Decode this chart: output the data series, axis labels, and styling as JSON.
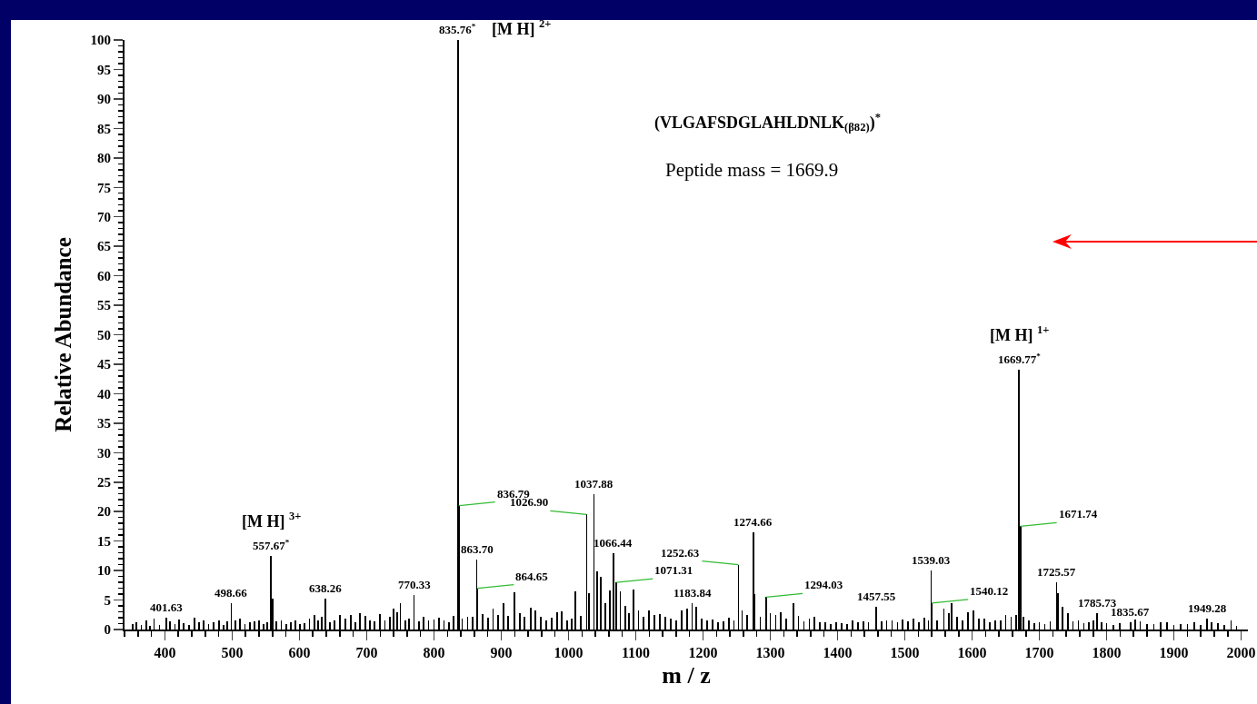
{
  "chart_data": {
    "type": "bar",
    "xlabel": "m / z",
    "ylabel": "Relative Abundance",
    "color": "#000000",
    "x": [
      352,
      358,
      365,
      372,
      378,
      384,
      392,
      401.63,
      408,
      415,
      421,
      428,
      436,
      444,
      451,
      458,
      465,
      472,
      480,
      487,
      493,
      498.66,
      505,
      512,
      519,
      526,
      533,
      540,
      547,
      552,
      557.67,
      560,
      566,
      573,
      580,
      587,
      594,
      601,
      608,
      615,
      622,
      628,
      633,
      638.26,
      645,
      652,
      660,
      668,
      676,
      683,
      690,
      698,
      705,
      712,
      720,
      727,
      734,
      740,
      745,
      750,
      757,
      763,
      770.33,
      778,
      785,
      792,
      800,
      807,
      815,
      822,
      829,
      835.76,
      836.79,
      842,
      850,
      857,
      863.7,
      864.65,
      872,
      880,
      888,
      895,
      903,
      910,
      920,
      928,
      935,
      944,
      951,
      959,
      967,
      975,
      983,
      990,
      998,
      1005,
      1010,
      1018,
      1026.9,
      1030,
      1037.88,
      1043,
      1048,
      1055,
      1062,
      1066.44,
      1071.31,
      1077,
      1084,
      1090,
      1097,
      1104,
      1112,
      1120,
      1128,
      1136,
      1144,
      1152,
      1160,
      1168,
      1176,
      1183.84,
      1190,
      1198,
      1206,
      1214,
      1222,
      1230,
      1238,
      1246,
      1252.63,
      1258,
      1266,
      1274.66,
      1277,
      1285,
      1294.03,
      1300,
      1308,
      1316,
      1324,
      1334,
      1342,
      1350,
      1358,
      1366,
      1374,
      1382,
      1390,
      1398,
      1406,
      1414,
      1422,
      1430,
      1438,
      1446,
      1457.55,
      1465,
      1473,
      1481,
      1489,
      1497,
      1505,
      1513,
      1521,
      1529,
      1535,
      1539.03,
      1540.12,
      1548,
      1558,
      1565,
      1570,
      1578,
      1586,
      1594,
      1602,
      1610,
      1618,
      1626,
      1634,
      1642,
      1650,
      1658,
      1665,
      1669.77,
      1671.74,
      1676,
      1684,
      1692,
      1700,
      1708,
      1716,
      1725.57,
      1728,
      1734,
      1742,
      1750,
      1758,
      1766,
      1774,
      1780,
      1785.73,
      1792,
      1800,
      1810,
      1820,
      1835.67,
      1842,
      1850,
      1860,
      1870,
      1880,
      1890,
      1900,
      1910,
      1920,
      1930,
      1940,
      1949.28,
      1956,
      1965,
      1975,
      1985,
      1993
    ],
    "values": [
      1,
      1.2,
      0.8,
      1.5,
      0.6,
      1.8,
      0.7,
      2,
      1.4,
      0.9,
      1.7,
      1.1,
      0.8,
      2,
      1.3,
      1.5,
      0.9,
      1.2,
      1.6,
      0.8,
      1.4,
      4.5,
      1.5,
      1.8,
      0.9,
      1.2,
      1.4,
      1.6,
      1,
      1.3,
      12.5,
      5.3,
      1.4,
      1.6,
      1,
      1.2,
      1.5,
      0.9,
      1.1,
      1.8,
      2.5,
      1.6,
      2.2,
      5.3,
      1.3,
      1.5,
      2.5,
      1.8,
      2.4,
      1.2,
      2.8,
      2.3,
      1.6,
      1.4,
      2.6,
      1.5,
      2.2,
      3.5,
      2.9,
      4.5,
      1.6,
      1.9,
      5.8,
      1.4,
      2.1,
      1.5,
      1.7,
      2,
      1.6,
      1.3,
      2.3,
      100,
      21,
      1.8,
      2.1,
      2.2,
      11.8,
      7,
      2.6,
      2,
      3.5,
      2.4,
      4.5,
      2.3,
      6.3,
      2.8,
      2.2,
      3.7,
      3.2,
      2.1,
      1.5,
      2,
      2.9,
      3.1,
      1.6,
      1.9,
      6.5,
      2.3,
      19.5,
      6.1,
      23,
      9.8,
      9,
      4.4,
      6.6,
      13,
      8,
      6.4,
      4,
      2.8,
      6.8,
      3.2,
      2.2,
      3.3,
      2.5,
      2.6,
      2.1,
      1.9,
      1.6,
      3.3,
      3.5,
      4.4,
      3.8,
      1.8,
      1.5,
      1.7,
      1.2,
      1.4,
      2,
      1.6,
      11,
      3.3,
      2.5,
      16.5,
      6,
      2.2,
      5.5,
      2.7,
      2.4,
      2.9,
      1.8,
      4.5,
      2.3,
      1.4,
      1.8,
      2.1,
      1.2,
      1.3,
      1,
      1.3,
      1.1,
      1,
      1.5,
      1.2,
      1.4,
      1.3,
      3.8,
      1.4,
      1.5,
      1.6,
      1.3,
      1.7,
      1.4,
      1.8,
      1.3,
      2,
      1.6,
      10,
      4.5,
      1.5,
      3.5,
      2.8,
      4.5,
      2.2,
      1.5,
      3,
      3.3,
      1.9,
      1.8,
      1.2,
      1.6,
      1.5,
      2.5,
      2.2,
      2.4,
      44,
      17.5,
      2.2,
      1.5,
      1.1,
      1.2,
      1,
      1.4,
      8,
      6.2,
      3.8,
      2.7,
      1.4,
      1.5,
      1.1,
      1.3,
      1.6,
      2.8,
      1.2,
      1.1,
      0.8,
      1.1,
      1.3,
      1.7,
      1.4,
      0.9,
      1,
      1.3,
      1.2,
      0.8,
      1,
      0.9,
      1.2,
      0.8,
      1.8,
      1.3,
      1.1,
      0.8,
      1.5,
      0.6
    ],
    "xlim": [
      340,
      2010
    ],
    "ylim": [
      0,
      100
    ],
    "xticks": [
      400,
      500,
      600,
      700,
      800,
      900,
      1000,
      1100,
      1200,
      1300,
      1400,
      1500,
      1600,
      1700,
      1800,
      1900,
      2000
    ],
    "yticks": [
      0,
      5,
      10,
      15,
      20,
      25,
      30,
      35,
      40,
      45,
      50,
      55,
      60,
      65,
      70,
      75,
      80,
      85,
      90,
      95,
      100
    ],
    "grid": false,
    "annotations": [
      "(VLGAFSDGLAHLDNLK$_{(β82)}$)$^{*}$",
      "Peptide mass = 1669.9",
      {
        "text": "835.76$^{*}$",
        "x": 835.76,
        "y": 100
      },
      "[M H] $^{2+}$",
      {
        "text": "836.79",
        "x": 836.79,
        "y": 21
      },
      {
        "text": "863.70",
        "x": 863.7,
        "y": 11.8
      },
      {
        "text": "864.65",
        "x": 864.65,
        "y": 7
      },
      {
        "text": "1026.90",
        "x": 1026.9,
        "y": 19.5
      },
      {
        "text": "1037.88",
        "x": 1037.88,
        "y": 23
      },
      {
        "text": "1066.44",
        "x": 1066.44,
        "y": 13
      },
      {
        "text": "1071.31",
        "x": 1071.31,
        "y": 8
      },
      {
        "text": "1183.84",
        "x": 1183.84,
        "y": 4.4
      },
      {
        "text": "1252.63",
        "x": 1252.63,
        "y": 11
      },
      {
        "text": "1274.66",
        "x": 1274.66,
        "y": 16.5
      },
      {
        "text": "1294.03",
        "x": 1294.03,
        "y": 5.5
      },
      {
        "text": "401.63",
        "x": 401.63,
        "y": 2
      },
      {
        "text": "498.66",
        "x": 498.66,
        "y": 4.5
      },
      {
        "text": "557.67$^{*}$",
        "x": 557.67,
        "y": 12.5
      },
      {
        "text": "[M H] $^{3+}$",
        "x": 557.67,
        "y": 12.5
      },
      {
        "text": "638.26",
        "x": 638.26,
        "y": 5.3
      },
      {
        "text": "770.33",
        "x": 770.33,
        "y": 5.8
      },
      {
        "text": "1457.55",
        "x": 1457.55,
        "y": 3.8
      },
      {
        "text": "1539.03",
        "x": 1539.03,
        "y": 10
      },
      {
        "text": "1540.12",
        "x": 1540.12,
        "y": 4.5
      },
      {
        "text": "1669.77$^{*}$",
        "x": 1669.77,
        "y": 44
      },
      {
        "text": "[M H] $^{1+}$",
        "x": 1669.77,
        "y": 44
      },
      {
        "text": "1671.74",
        "x": 1671.74,
        "y": 17.5
      },
      {
        "text": "1725.57",
        "x": 1725.57,
        "y": 8
      },
      {
        "text": "1785.73",
        "x": 1785.73,
        "y": 2.8
      },
      {
        "text": "1835.67",
        "x": 1835.67,
        "y": 1.3
      },
      {
        "text": "1949.28",
        "x": 1949.28,
        "y": 1.8
      }
    ]
  }
}
